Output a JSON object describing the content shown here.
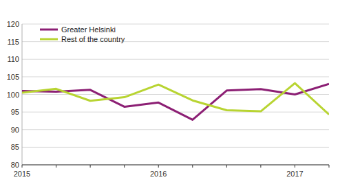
{
  "chart_data": {
    "type": "line",
    "categories": [
      "2015",
      null,
      null,
      null,
      "2016",
      null,
      null,
      null,
      "2017",
      null
    ],
    "series": [
      {
        "name": "Greater Helsinki",
        "color": "#8c1f74",
        "values": [
          101,
          100.8,
          101.3,
          96.5,
          97.7,
          92.8,
          101.1,
          101.5,
          100,
          103
        ]
      },
      {
        "name": "Rest of the country",
        "color": "#b8d432",
        "values": [
          100.5,
          101.6,
          98.2,
          99.2,
          102.8,
          98.3,
          95.5,
          95.2,
          103.2,
          94.3
        ]
      }
    ],
    "ylim": [
      80,
      120
    ],
    "yticks": [
      80,
      85,
      90,
      95,
      100,
      105,
      110,
      115,
      120
    ],
    "grid": true,
    "legend": "upper left"
  }
}
